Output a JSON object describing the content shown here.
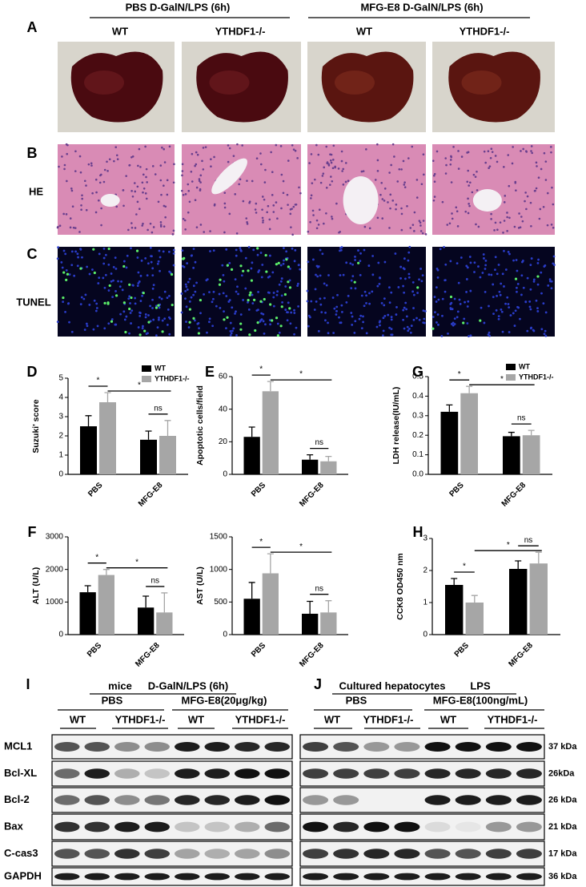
{
  "figure": {
    "panel_labels": [
      "A",
      "B",
      "C",
      "D",
      "E",
      "F",
      "G",
      "H",
      "I",
      "J"
    ],
    "group_headers": [
      "PBS D-GalN/LPS (6h)",
      "MFG-E8 D-GalN/LPS (6h)"
    ],
    "column_headers": [
      "WT",
      "YTHDF1-/-",
      "WT",
      "YTHDF1-/-"
    ],
    "row_labels": [
      "HE",
      "TUNEL"
    ]
  },
  "chart_data": [
    {
      "type": "bar",
      "ylabel": "Suzuki' score",
      "categories": [
        "PBS",
        "MFG-E8"
      ],
      "series": [
        {
          "name": "WT",
          "color": "#000000",
          "values": [
            2.5,
            1.8
          ],
          "errors": [
            0.55,
            0.45
          ]
        },
        {
          "name": "YTHDF1-/-",
          "color": "#a6a6a6",
          "values": [
            3.75,
            2.0
          ],
          "errors": [
            0.5,
            0.8
          ]
        }
      ],
      "ylim": [
        0,
        5
      ],
      "yticks": [
        0,
        1,
        2,
        3,
        4,
        5
      ],
      "annotations": [
        "*",
        "*",
        "ns"
      ],
      "legend": "upper right"
    },
    {
      "type": "bar",
      "ylabel": "Apoptotic cells/field",
      "categories": [
        "PBS",
        "MFG-E8"
      ],
      "series": [
        {
          "color": "#000000",
          "values": [
            23,
            9
          ],
          "errors": [
            6,
            3
          ]
        },
        {
          "color": "#a6a6a6",
          "values": [
            51,
            8
          ],
          "errors": [
            6,
            3
          ]
        }
      ],
      "ylim": [
        0,
        60
      ],
      "yticks": [
        0,
        20,
        40,
        60
      ],
      "annotations": [
        "*",
        "*",
        "ns"
      ]
    },
    {
      "type": "bar",
      "ylabel": "LDH release(IU/mL)",
      "categories": [
        "PBS",
        "MFG-E8"
      ],
      "series": [
        {
          "name": "WT",
          "color": "#000000",
          "values": [
            0.32,
            0.195
          ],
          "errors": [
            0.035,
            0.02
          ]
        },
        {
          "name": "YTHDF1-/-",
          "color": "#a6a6a6",
          "values": [
            0.415,
            0.2
          ],
          "errors": [
            0.035,
            0.025
          ]
        }
      ],
      "ylim": [
        0,
        0.5
      ],
      "yticks": [
        {
          "value": 0,
          "label": "0.0"
        },
        0.1,
        0.2,
        0.3,
        0.4,
        0.5
      ],
      "annotations": [
        "*",
        "*",
        "ns"
      ],
      "legend": "upper right"
    },
    {
      "type": "bar",
      "ylabel": "ALT (U/L)",
      "categories": [
        "PBS",
        "MFG-E8"
      ],
      "series": [
        {
          "color": "#000000",
          "values": [
            1300,
            830
          ],
          "errors": [
            200,
            350
          ]
        },
        {
          "color": "#a6a6a6",
          "values": [
            1830,
            680
          ],
          "errors": [
            170,
            600
          ]
        }
      ],
      "ylim": [
        0,
        3000
      ],
      "yticks": [
        0,
        1000,
        2000,
        3000
      ],
      "annotations": [
        "*",
        "*",
        "ns"
      ]
    },
    {
      "type": "bar",
      "ylabel": "AST (U/L)",
      "categories": [
        "PBS",
        "MFG-E8"
      ],
      "series": [
        {
          "color": "#000000",
          "values": [
            550,
            320
          ],
          "errors": [
            250,
            190
          ]
        },
        {
          "color": "#a6a6a6",
          "values": [
            940,
            340
          ],
          "errors": [
            300,
            180
          ]
        }
      ],
      "ylim": [
        0,
        1500
      ],
      "yticks": [
        0,
        500,
        1000,
        1500
      ],
      "annotations": [
        "*",
        "*",
        "ns"
      ]
    },
    {
      "type": "bar",
      "ylabel": "CCK8 OD450 nm",
      "categories": [
        "PBS",
        "MFG-E8"
      ],
      "series": [
        {
          "color": "#000000",
          "values": [
            1.55,
            2.05
          ],
          "errors": [
            0.2,
            0.25
          ]
        },
        {
          "color": "#a6a6a6",
          "values": [
            1.0,
            2.22
          ],
          "errors": [
            0.22,
            0.35
          ]
        }
      ],
      "ylim": [
        0,
        3
      ],
      "yticks": [
        0,
        1,
        2,
        3
      ],
      "annotations": [
        "*",
        "*",
        "ns"
      ]
    }
  ],
  "blots": [
    {
      "treatment": "mice",
      "condition": "D-GalN/LPS (6h)",
      "groups": [
        "PBS",
        "MFG-E8(20μg/kg)"
      ],
      "genotypes": [
        "WT",
        "YTHDF1-/-",
        "WT",
        "YTHDF1-/-"
      ],
      "proteins": [
        "MCL1",
        "Bcl-XL",
        "Bcl-2",
        "Bax",
        "C-cas3",
        "GAPDH"
      ]
    },
    {
      "treatment": "Cultured hepatocytes",
      "condition": "LPS",
      "groups": [
        "PBS",
        "MFG-E8(100ng/mL)"
      ],
      "genotypes": [
        "WT",
        "YTHDF1-/-",
        "WT",
        "YTHDF1-/-"
      ],
      "sizes": [
        "37 kDa",
        "26kDa",
        "26 kDa",
        "21 kDa",
        "17 kDa",
        "36 kDa"
      ]
    }
  ]
}
